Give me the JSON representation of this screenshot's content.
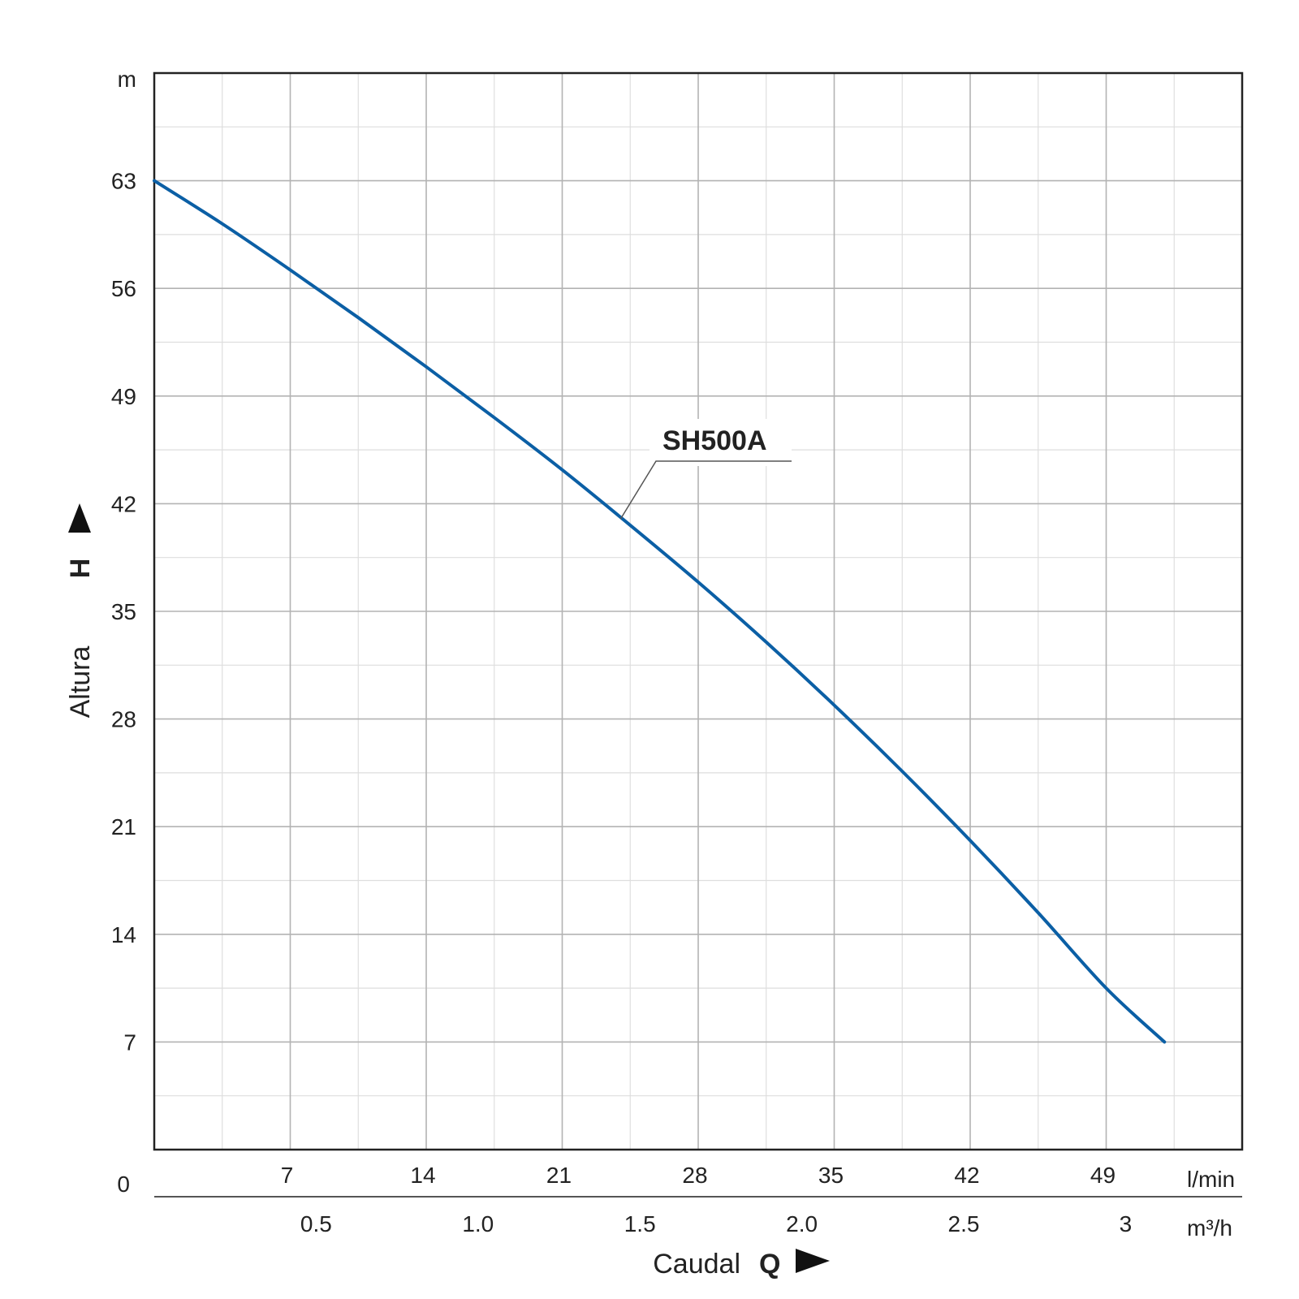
{
  "chart_data": {
    "type": "line",
    "xlabel": "Caudal",
    "xlabel_symbol": "Q",
    "ylabel": "Altura",
    "ylabel_symbol": "H",
    "y_unit": "m",
    "x_unit": "l/min",
    "x2_unit": "m³/h",
    "origin_label": "0",
    "xlim": [
      0,
      56
    ],
    "ylim": [
      0,
      70
    ],
    "x_ticks": [
      "7",
      "14",
      "21",
      "28",
      "35",
      "42",
      "49"
    ],
    "x_tick_values": [
      7,
      14,
      21,
      28,
      35,
      42,
      49
    ],
    "x2_ticks": [
      "0.5",
      "1.0",
      "1.5",
      "2.0",
      "2.5",
      "3"
    ],
    "x2_tick_values": [
      0.5,
      1.0,
      1.5,
      2.0,
      2.5,
      3.0
    ],
    "y_ticks": [
      "7",
      "14",
      "21",
      "28",
      "35",
      "42",
      "49",
      "56",
      "63"
    ],
    "y_tick_values": [
      7,
      14,
      21,
      28,
      35,
      42,
      49,
      56,
      63
    ],
    "grid": true,
    "series": [
      {
        "name": "SH500A",
        "color": "#0b5fa5",
        "x": [
          0,
          3.5,
          7,
          10.5,
          14,
          17.5,
          21,
          24.5,
          28,
          31.5,
          35,
          38.5,
          42,
          45.5,
          49,
          52
        ],
        "y": [
          63,
          60.2,
          57.2,
          54.1,
          50.9,
          47.6,
          44.2,
          40.6,
          36.9,
          33.0,
          28.9,
          24.6,
          20.1,
          15.4,
          10.5,
          7
        ]
      }
    ],
    "annotations": [
      {
        "text": "SH500A",
        "points_to": {
          "x": 24,
          "y": 41
        }
      }
    ]
  }
}
